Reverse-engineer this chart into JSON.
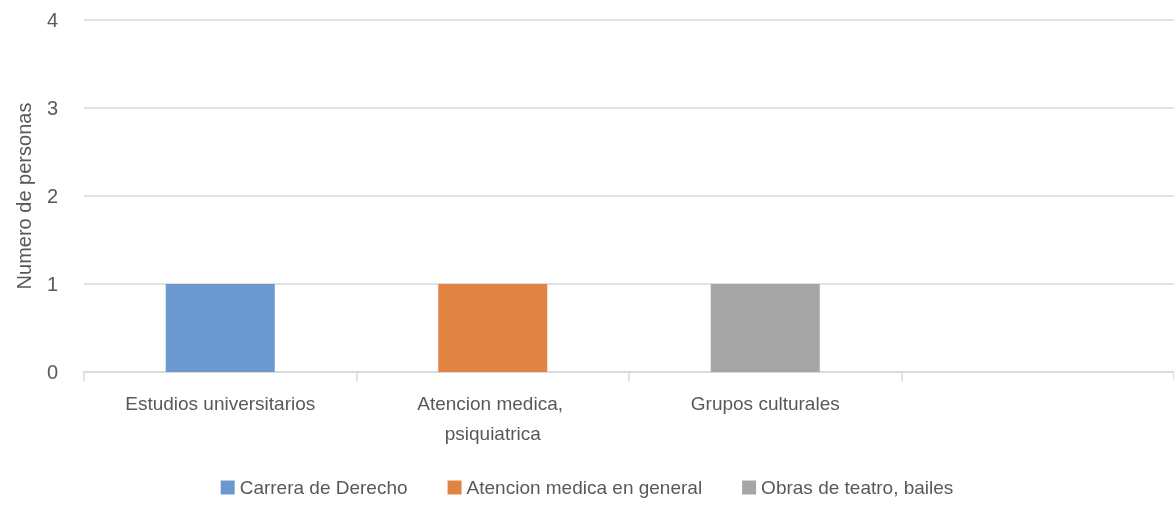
{
  "chart_data": {
    "type": "bar",
    "ylabel": "Numero de personas",
    "categories": [
      "Estudios universitarios",
      "Atencion medica, psiquiatrica",
      "Grupos culturales",
      null
    ],
    "series": [
      {
        "name": "Carrera de Derecho",
        "color": "#6a98cf",
        "values": [
          1,
          null,
          null,
          null
        ]
      },
      {
        "name": "Atencion medica en general",
        "color": "#e08443",
        "values": [
          null,
          1,
          null,
          null
        ]
      },
      {
        "name": "Obras de teatro, bailes",
        "color": "#a5a5a5",
        "values": [
          null,
          null,
          1,
          null
        ]
      }
    ],
    "stacked": true,
    "ylim": [
      0,
      4
    ],
    "yticks": [
      0,
      1,
      2,
      3,
      4
    ],
    "grid": "y",
    "legend": "bottom"
  }
}
